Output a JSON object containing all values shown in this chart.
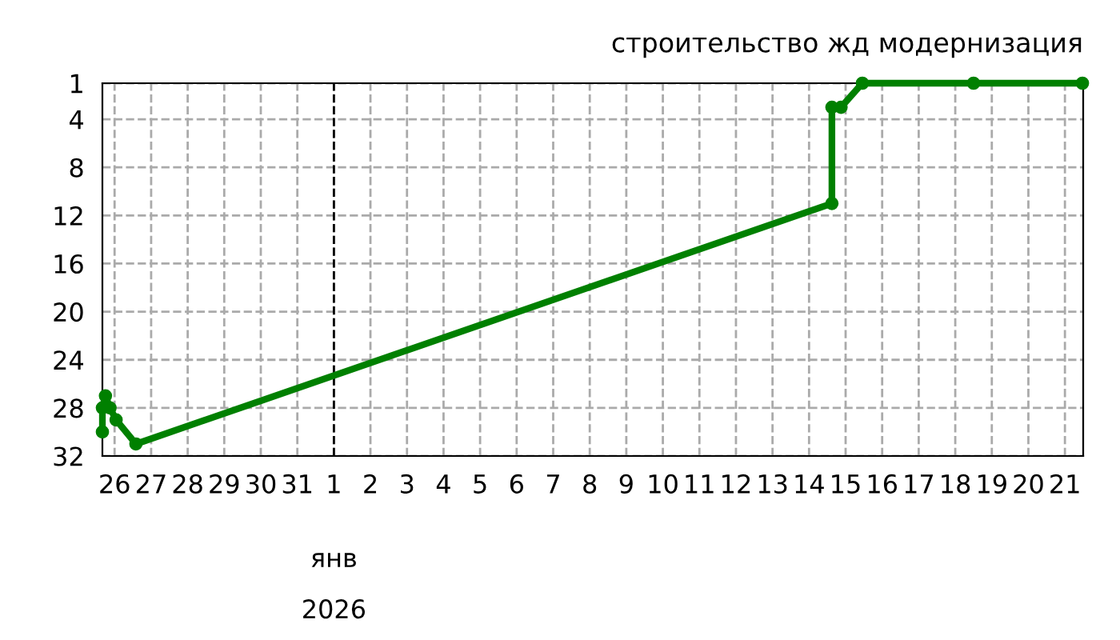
{
  "chart_data": {
    "type": "line",
    "title": "строительство жд модернизация",
    "x": [
      "2025-12-25T16:00",
      "2025-12-25T16:00",
      "2025-12-25T18:00",
      "2025-12-25T21:00",
      "2025-12-26T01:00",
      "2025-12-26T14:00",
      "2026-01-14T15:00",
      "2026-01-14T15:00",
      "2026-01-14T21:00",
      "2026-01-15T11:00",
      "2026-01-18T12:00",
      "2026-01-21T11:30"
    ],
    "series": [
      {
        "color": "#008000",
        "values": [
          30,
          28,
          27,
          28,
          29,
          31,
          11,
          3,
          3,
          1,
          1,
          1
        ]
      }
    ],
    "marker": "circle",
    "line_style": "solid",
    "ylim": [
      32,
      1
    ],
    "yticks": [
      1,
      4,
      8,
      12,
      16,
      20,
      24,
      28,
      32
    ],
    "xlim": [
      "2025-12-25T16:00",
      "2026-01-21T12:00"
    ],
    "xticks": [
      {
        "value": "2025-12-26",
        "label": "26"
      },
      {
        "value": "2025-12-27",
        "label": "27"
      },
      {
        "value": "2025-12-28",
        "label": "28"
      },
      {
        "value": "2025-12-29",
        "label": "29"
      },
      {
        "value": "2025-12-30",
        "label": "30"
      },
      {
        "value": "2025-12-31",
        "label": "31"
      },
      {
        "value": "2026-01-01",
        "label": "1"
      },
      {
        "value": "2026-01-02",
        "label": "2"
      },
      {
        "value": "2026-01-03",
        "label": "3"
      },
      {
        "value": "2026-01-04",
        "label": "4"
      },
      {
        "value": "2026-01-05",
        "label": "5"
      },
      {
        "value": "2026-01-06",
        "label": "6"
      },
      {
        "value": "2026-01-07",
        "label": "7"
      },
      {
        "value": "2026-01-08",
        "label": "8"
      },
      {
        "value": "2026-01-09",
        "label": "9"
      },
      {
        "value": "2026-01-10",
        "label": "10"
      },
      {
        "value": "2026-01-11",
        "label": "11"
      },
      {
        "value": "2026-01-12",
        "label": "12"
      },
      {
        "value": "2026-01-13",
        "label": "13"
      },
      {
        "value": "2026-01-14",
        "label": "14"
      },
      {
        "value": "2026-01-15",
        "label": "15"
      },
      {
        "value": "2026-01-16",
        "label": "16"
      },
      {
        "value": "2026-01-17",
        "label": "17"
      },
      {
        "value": "2026-01-18",
        "label": "18"
      },
      {
        "value": "2026-01-19",
        "label": "19"
      },
      {
        "value": "2026-01-20",
        "label": "20"
      },
      {
        "value": "2026-01-21",
        "label": "21"
      }
    ],
    "ref_lines": [
      {
        "axis": "x",
        "value": "2026-01-01",
        "color": "#000000",
        "line_style": "dashed"
      }
    ],
    "annotations": [
      "янв",
      "2026"
    ],
    "grid": true
  }
}
